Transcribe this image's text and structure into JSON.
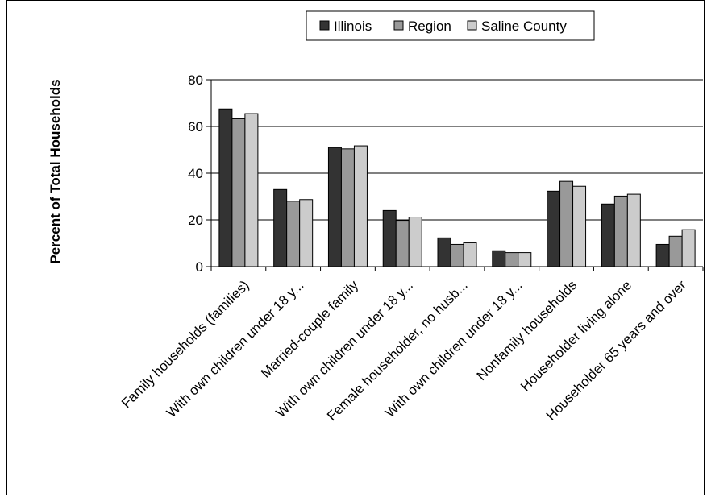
{
  "chart_data": {
    "type": "bar",
    "title": "",
    "xlabel": "",
    "ylabel": "Percent of Total Households",
    "ylim": [
      0,
      80
    ],
    "yticks": [
      0,
      20,
      40,
      60,
      80
    ],
    "grid": true,
    "legend_position": "top-center",
    "categories": [
      "Family households (families)",
      "With own children under 18 y...",
      "Married-couple family",
      "With own children under 18 y...",
      "Female householder, no husb...",
      "With own children under 18 y...",
      "Nonfamily households",
      "Householder living alone",
      "Householder 65 years and over"
    ],
    "series": [
      {
        "name": "Illinois",
        "color": "#333333",
        "values": [
          67.5,
          33,
          51,
          24,
          12.3,
          6.8,
          32.3,
          26.8,
          9.5
        ]
      },
      {
        "name": "Region",
        "color": "#999999",
        "values": [
          63.3,
          28,
          50.4,
          19.8,
          9.5,
          6,
          36.5,
          30.2,
          13
        ]
      },
      {
        "name": "Saline County",
        "color": "#cccccc",
        "values": [
          65.5,
          28.7,
          51.7,
          21.2,
          10.2,
          6,
          34.4,
          31,
          15.8
        ]
      }
    ]
  }
}
